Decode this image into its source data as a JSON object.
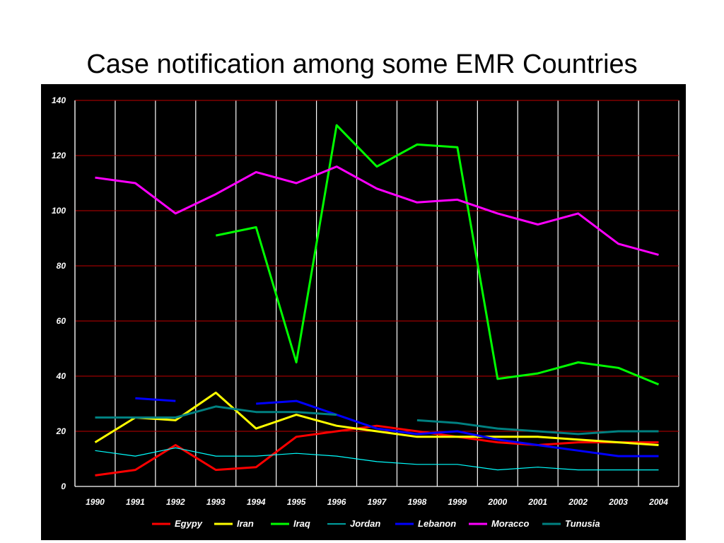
{
  "title": "Case notification among some EMR Countries",
  "colors": {
    "background": "#000000",
    "vertical_grid": "#ffffff",
    "horizontal_grid": "#c00000",
    "text": "#ffffff"
  },
  "chart_data": {
    "type": "line",
    "title": "Case notification among some EMR Countries",
    "xlabel": "",
    "ylabel": "",
    "categories": [
      "1990",
      "1991",
      "1992",
      "1993",
      "1994",
      "1995",
      "1996",
      "1997",
      "1998",
      "1999",
      "2000",
      "2001",
      "2002",
      "2003",
      "2004"
    ],
    "ylim": [
      0,
      140
    ],
    "yticks": [
      0,
      20,
      40,
      60,
      80,
      100,
      120,
      140
    ],
    "grid": true,
    "legend_position": "bottom",
    "series": [
      {
        "name": "Egypy",
        "color": "#ff0000",
        "width": "thick",
        "values": [
          4,
          6,
          15,
          6,
          7,
          18,
          20,
          22,
          20,
          18,
          16,
          15,
          16,
          16,
          16
        ]
      },
      {
        "name": "Iran",
        "color": "#ffff00",
        "width": "thick",
        "values": [
          16,
          25,
          24,
          34,
          21,
          26,
          22,
          20,
          18,
          18,
          18,
          18,
          17,
          16,
          15
        ]
      },
      {
        "name": "Iraq",
        "color": "#00ff00",
        "width": "thick",
        "values": [
          null,
          null,
          null,
          91,
          94,
          45,
          131,
          116,
          124,
          123,
          39,
          41,
          45,
          43,
          37
        ]
      },
      {
        "name": "Jordan",
        "color": "#00ffff",
        "width": "thin",
        "values": [
          13,
          11,
          14,
          11,
          11,
          12,
          11,
          9,
          8,
          8,
          6,
          7,
          6,
          6,
          6
        ]
      },
      {
        "name": "Lebanon",
        "color": "#0000ff",
        "width": "thick",
        "values": [
          null,
          32,
          31,
          null,
          30,
          31,
          26,
          21,
          19,
          20,
          17,
          15,
          13,
          11,
          11
        ]
      },
      {
        "name": "Moracco",
        "color": "#ff00ff",
        "width": "thick",
        "values": [
          112,
          110,
          99,
          106,
          114,
          110,
          116,
          108,
          103,
          104,
          99,
          95,
          99,
          88,
          84
        ]
      },
      {
        "name": "Tunusia",
        "color": "#008080",
        "width": "thick",
        "values": [
          25,
          25,
          25,
          29,
          27,
          27,
          26,
          null,
          24,
          23,
          21,
          20,
          19,
          20,
          20
        ]
      }
    ]
  }
}
